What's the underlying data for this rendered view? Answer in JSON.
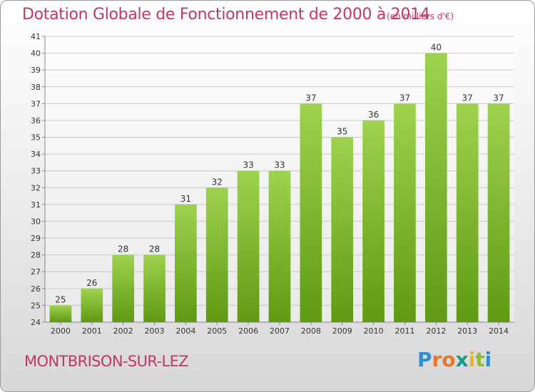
{
  "title": "Dotation Globale de Fonctionnement de 2000 à 2014",
  "unit_note": "(en milliers d'€)",
  "commune": "MONTBRISON-SUR-LEZ",
  "logo": {
    "text": "Proxiti",
    "letters": [
      {
        "ch": "P",
        "color": "#2f8fcf"
      },
      {
        "ch": "r",
        "color": "#e8762b"
      },
      {
        "ch": "o",
        "color": "#e8762b"
      },
      {
        "ch": "x",
        "color": "#1a9a8a"
      },
      {
        "ch": "i",
        "color": "#f2b21c"
      },
      {
        "ch": "t",
        "color": "#8cbf2a"
      },
      {
        "ch": "i",
        "color": "#2f8fcf"
      }
    ]
  },
  "colors": {
    "title": "#c0356a",
    "bar_top": "#9fd24e",
    "bar_bottom": "#5f9a12",
    "grid": "#c8c8c8"
  },
  "chart_data": {
    "type": "bar",
    "categories": [
      "2000",
      "2001",
      "2002",
      "2003",
      "2004",
      "2005",
      "2006",
      "2007",
      "2008",
      "2009",
      "2010",
      "2011",
      "2012",
      "2013",
      "2014"
    ],
    "values": [
      25,
      26,
      28,
      28,
      31,
      32,
      33,
      33,
      37,
      35,
      36,
      37,
      40,
      37,
      37
    ],
    "y_ticks": [
      "24",
      "25",
      "26",
      "27",
      "28",
      "29",
      "30",
      "31",
      "32",
      "33",
      "34",
      "35",
      "36",
      "37",
      "38",
      "39",
      "40",
      "41"
    ],
    "ylim": [
      24,
      41
    ],
    "grid": true,
    "legend": "none"
  }
}
